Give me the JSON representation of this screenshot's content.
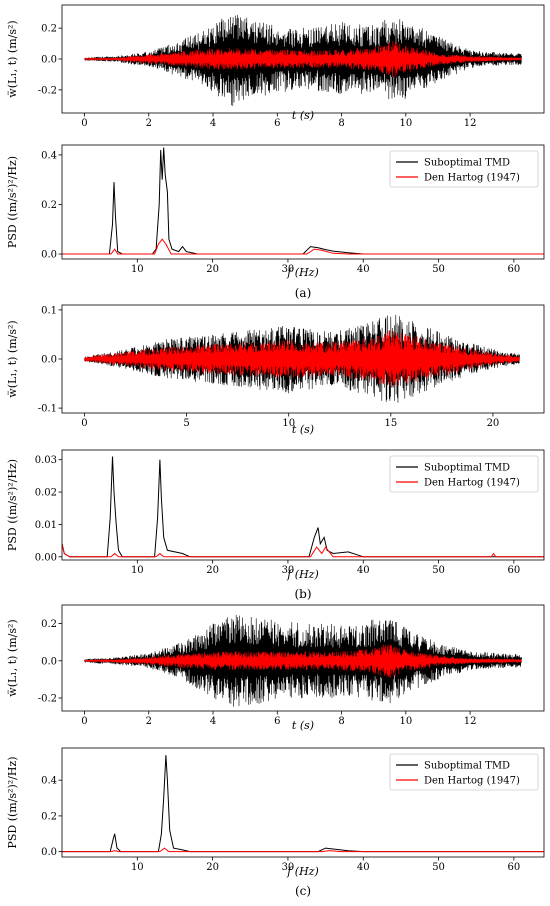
{
  "captions": [
    "(a)",
    "(b)",
    "(c)"
  ],
  "legend_labels": [
    "Suboptimal TMD",
    "Den Hartog (1947)"
  ],
  "colors": {
    "series1": "#000000",
    "series2": "#ff0000",
    "axis": "#000000"
  },
  "chart_data": [
    {
      "type": "line",
      "xlabel": "t (s)",
      "ylabel": "ẅ(L₁, t) (m/s²)",
      "xlim": [
        -0.7,
        14.3
      ],
      "ylim": [
        -0.35,
        0.35
      ],
      "xticks": [
        0,
        2,
        4,
        6,
        8,
        10,
        12
      ],
      "yticks": [
        -0.2,
        0.0,
        0.2
      ],
      "duration": 13.6,
      "series": [
        {
          "envelope": [
            [
              0,
              0.01
            ],
            [
              1.0,
              0.02
            ],
            [
              2.0,
              0.05
            ],
            [
              3.0,
              0.12
            ],
            [
              4.0,
              0.22
            ],
            [
              4.6,
              0.31
            ],
            [
              5.2,
              0.26
            ],
            [
              6.0,
              0.22
            ],
            [
              7.0,
              0.2
            ],
            [
              8.0,
              0.24
            ],
            [
              9.0,
              0.22
            ],
            [
              9.6,
              0.28
            ],
            [
              10.0,
              0.26
            ],
            [
              11.0,
              0.15
            ],
            [
              12.0,
              0.06
            ],
            [
              13.0,
              0.04
            ],
            [
              13.6,
              0.04
            ]
          ]
        },
        {
          "envelope": [
            [
              0,
              0.005
            ],
            [
              1.0,
              0.01
            ],
            [
              2.0,
              0.03
            ],
            [
              3.0,
              0.05
            ],
            [
              4.0,
              0.07
            ],
            [
              5.0,
              0.07
            ],
            [
              6.0,
              0.06
            ],
            [
              7.0,
              0.06
            ],
            [
              8.0,
              0.06
            ],
            [
              9.0,
              0.08
            ],
            [
              9.6,
              0.12
            ],
            [
              10.2,
              0.08
            ],
            [
              11.0,
              0.04
            ],
            [
              12.0,
              0.02
            ],
            [
              13.6,
              0.01
            ]
          ]
        }
      ]
    },
    {
      "type": "line",
      "xlabel": "f (Hz)",
      "ylabel": "PSD ((m/s²)²/Hz)",
      "xlim": [
        0,
        64
      ],
      "ylim": [
        -0.02,
        0.44
      ],
      "xticks": [
        10,
        20,
        30,
        40,
        50,
        60
      ],
      "yticks": [
        0.0,
        0.2,
        0.4
      ],
      "legend": "top-right",
      "series": [
        {
          "name": "Suboptimal TMD",
          "points": [
            [
              0,
              0
            ],
            [
              6.3,
              0
            ],
            [
              6.7,
              0.12
            ],
            [
              6.9,
              0.29
            ],
            [
              7.1,
              0.15
            ],
            [
              7.4,
              0.01
            ],
            [
              8,
              0
            ],
            [
              12.0,
              0
            ],
            [
              12.5,
              0.02
            ],
            [
              12.9,
              0.2
            ],
            [
              13.1,
              0.42
            ],
            [
              13.3,
              0.3
            ],
            [
              13.5,
              0.43
            ],
            [
              13.7,
              0.32
            ],
            [
              14.0,
              0.25
            ],
            [
              14.2,
              0.06
            ],
            [
              14.6,
              0.02
            ],
            [
              15.5,
              0.01
            ],
            [
              16.0,
              0.03
            ],
            [
              16.5,
              0.01
            ],
            [
              18,
              0
            ],
            [
              32,
              0
            ],
            [
              33,
              0.03
            ],
            [
              34,
              0.025
            ],
            [
              35,
              0.018
            ],
            [
              36,
              0.012
            ],
            [
              38,
              0.005
            ],
            [
              40,
              0
            ],
            [
              64,
              0
            ]
          ]
        },
        {
          "name": "Den Hartog (1947)",
          "points": [
            [
              0,
              0
            ],
            [
              6.5,
              0
            ],
            [
              7.0,
              0.02
            ],
            [
              7.4,
              0
            ],
            [
              12.3,
              0
            ],
            [
              12.8,
              0.04
            ],
            [
              13.3,
              0.06
            ],
            [
              13.8,
              0.04
            ],
            [
              14.5,
              0
            ],
            [
              32.5,
              0
            ],
            [
              33.5,
              0.02
            ],
            [
              34.5,
              0.015
            ],
            [
              36,
              0.003
            ],
            [
              38,
              0
            ],
            [
              64,
              0
            ]
          ]
        }
      ]
    },
    {
      "type": "line",
      "xlabel": "t (s)",
      "ylabel": "ẅ(L₁, t) (m/s²)",
      "xlim": [
        -1.1,
        22.5
      ],
      "ylim": [
        -0.11,
        0.11
      ],
      "xticks": [
        0,
        5,
        10,
        15,
        20
      ],
      "yticks": [
        -0.1,
        0.0,
        0.1
      ],
      "duration": 21.3,
      "series": [
        {
          "envelope": [
            [
              0,
              0.005
            ],
            [
              2,
              0.02
            ],
            [
              4,
              0.04
            ],
            [
              6,
              0.05
            ],
            [
              8,
              0.06
            ],
            [
              10,
              0.07
            ],
            [
              12,
              0.055
            ],
            [
              14,
              0.075
            ],
            [
              15,
              0.095
            ],
            [
              16,
              0.08
            ],
            [
              18,
              0.045
            ],
            [
              20,
              0.02
            ],
            [
              21.3,
              0.01
            ]
          ]
        },
        {
          "envelope": [
            [
              0,
              0.005
            ],
            [
              2,
              0.015
            ],
            [
              4,
              0.025
            ],
            [
              6,
              0.03
            ],
            [
              8,
              0.035
            ],
            [
              10,
              0.04
            ],
            [
              12,
              0.035
            ],
            [
              14,
              0.045
            ],
            [
              15,
              0.06
            ],
            [
              16,
              0.05
            ],
            [
              18,
              0.03
            ],
            [
              20,
              0.012
            ],
            [
              21.3,
              0.006
            ]
          ]
        }
      ]
    },
    {
      "type": "line",
      "xlabel": "f (Hz)",
      "ylabel": "PSD ((m/s²)²/Hz)",
      "xlim": [
        0,
        64
      ],
      "ylim": [
        -0.001,
        0.033
      ],
      "xticks": [
        10,
        20,
        30,
        40,
        50,
        60
      ],
      "yticks": [
        0.0,
        0.01,
        0.02,
        0.03
      ],
      "legend": "top-right",
      "series": [
        {
          "name": "Suboptimal TMD",
          "points": [
            [
              0,
              0.004
            ],
            [
              0.3,
              0.001
            ],
            [
              1,
              0
            ],
            [
              6.0,
              0
            ],
            [
              6.4,
              0.012
            ],
            [
              6.7,
              0.031
            ],
            [
              6.9,
              0.02
            ],
            [
              7.2,
              0.01
            ],
            [
              7.5,
              0.002
            ],
            [
              8,
              0
            ],
            [
              12.3,
              0
            ],
            [
              12.7,
              0.012
            ],
            [
              13.0,
              0.03
            ],
            [
              13.2,
              0.018
            ],
            [
              13.5,
              0.006
            ],
            [
              14,
              0.002
            ],
            [
              16,
              0.001
            ],
            [
              17,
              0
            ],
            [
              32.8,
              0
            ],
            [
              33.5,
              0.006
            ],
            [
              34.0,
              0.009
            ],
            [
              34.3,
              0.004
            ],
            [
              34.8,
              0.006
            ],
            [
              35.2,
              0.002
            ],
            [
              36,
              0.001
            ],
            [
              38,
              0.0015
            ],
            [
              40,
              0
            ],
            [
              64,
              0
            ]
          ]
        },
        {
          "name": "Den Hartog (1947)",
          "points": [
            [
              0,
              0.004
            ],
            [
              0.3,
              0.001
            ],
            [
              1,
              0
            ],
            [
              6.5,
              0
            ],
            [
              7.0,
              0.001
            ],
            [
              7.5,
              0
            ],
            [
              12.5,
              0
            ],
            [
              13.0,
              0.001
            ],
            [
              13.5,
              0
            ],
            [
              33,
              0
            ],
            [
              33.8,
              0.003
            ],
            [
              34.5,
              0.001
            ],
            [
              35,
              0.003
            ],
            [
              36,
              0
            ],
            [
              57,
              0
            ],
            [
              57.3,
              0.001
            ],
            [
              57.6,
              0
            ],
            [
              64,
              0
            ]
          ]
        }
      ]
    },
    {
      "type": "line",
      "xlabel": "t (s)",
      "ylabel": "ẅ(L₁, t) (m/s²)",
      "xlim": [
        -0.7,
        14.3
      ],
      "ylim": [
        -0.27,
        0.3
      ],
      "xticks": [
        0,
        2,
        4,
        6,
        8,
        10,
        12
      ],
      "yticks": [
        -0.2,
        0.0,
        0.2
      ],
      "duration": 13.6,
      "series": [
        {
          "envelope": [
            [
              0,
              0.01
            ],
            [
              1,
              0.02
            ],
            [
              2,
              0.04
            ],
            [
              3,
              0.1
            ],
            [
              4,
              0.2
            ],
            [
              4.6,
              0.25
            ],
            [
              5.5,
              0.23
            ],
            [
              7,
              0.2
            ],
            [
              8.5,
              0.2
            ],
            [
              9.4,
              0.24
            ],
            [
              10,
              0.18
            ],
            [
              11,
              0.1
            ],
            [
              12,
              0.05
            ],
            [
              13.6,
              0.035
            ]
          ]
        },
        {
          "envelope": [
            [
              0,
              0.005
            ],
            [
              1,
              0.01
            ],
            [
              2,
              0.02
            ],
            [
              3,
              0.04
            ],
            [
              4,
              0.05
            ],
            [
              5,
              0.05
            ],
            [
              6,
              0.05
            ],
            [
              7,
              0.05
            ],
            [
              8,
              0.05
            ],
            [
              9,
              0.07
            ],
            [
              9.5,
              0.1
            ],
            [
              10,
              0.06
            ],
            [
              11,
              0.03
            ],
            [
              12,
              0.015
            ],
            [
              13.6,
              0.01
            ]
          ]
        }
      ]
    },
    {
      "type": "line",
      "xlabel": "f (Hz)",
      "ylabel": "PSD ((m/s²)²/Hz)",
      "xlim": [
        0,
        64
      ],
      "ylim": [
        -0.03,
        0.58
      ],
      "xticks": [
        10,
        20,
        30,
        40,
        50,
        60
      ],
      "yticks": [
        0.0,
        0.2,
        0.4
      ],
      "legend": "top-right",
      "series": [
        {
          "name": "Suboptimal TMD",
          "points": [
            [
              0,
              0
            ],
            [
              6.4,
              0
            ],
            [
              6.8,
              0.07
            ],
            [
              7.0,
              0.1
            ],
            [
              7.3,
              0.02
            ],
            [
              7.8,
              0
            ],
            [
              12.8,
              0
            ],
            [
              13.2,
              0.1
            ],
            [
              13.5,
              0.3
            ],
            [
              13.8,
              0.54
            ],
            [
              14.0,
              0.4
            ],
            [
              14.3,
              0.12
            ],
            [
              14.8,
              0.02
            ],
            [
              16,
              0.01
            ],
            [
              17,
              0
            ],
            [
              34,
              0
            ],
            [
              35,
              0.02
            ],
            [
              36,
              0.015
            ],
            [
              38,
              0.005
            ],
            [
              40,
              0
            ],
            [
              64,
              0
            ]
          ]
        },
        {
          "name": "Den Hartog (1947)",
          "points": [
            [
              0,
              0
            ],
            [
              6.5,
              0
            ],
            [
              7.0,
              0.005
            ],
            [
              7.5,
              0
            ],
            [
              13.0,
              0
            ],
            [
              13.6,
              0.02
            ],
            [
              14.2,
              0
            ],
            [
              34.5,
              0
            ],
            [
              35.5,
              0.006
            ],
            [
              37,
              0
            ],
            [
              64,
              0
            ]
          ]
        }
      ]
    }
  ]
}
